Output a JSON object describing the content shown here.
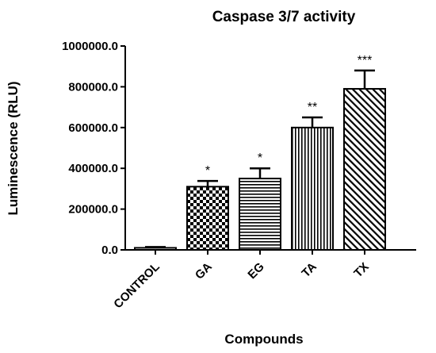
{
  "chart_data": {
    "type": "bar",
    "title": "Caspase 3/7 activity",
    "xlabel": "Compounds",
    "ylabel": "Luminescence (RLU)",
    "ylim": [
      0,
      1000000
    ],
    "yticks": [
      "0.0",
      "200000.0",
      "400000.0",
      "600000.0",
      "800000.0",
      "1000000.0"
    ],
    "ytick_values": [
      0,
      200000,
      400000,
      600000,
      800000,
      1000000
    ],
    "categories": [
      "CONTROL",
      "GA",
      "EG",
      "TA",
      "TX"
    ],
    "values": [
      10000,
      310000,
      350000,
      600000,
      790000
    ],
    "errors": [
      4000,
      28000,
      50000,
      50000,
      90000
    ],
    "significance": [
      "",
      "*",
      "*",
      "**",
      "***"
    ],
    "patterns": [
      "none",
      "checkerboard",
      "horizontal-lines",
      "vertical-lines",
      "diagonal-lines"
    ],
    "grid": false,
    "legend": "none"
  }
}
